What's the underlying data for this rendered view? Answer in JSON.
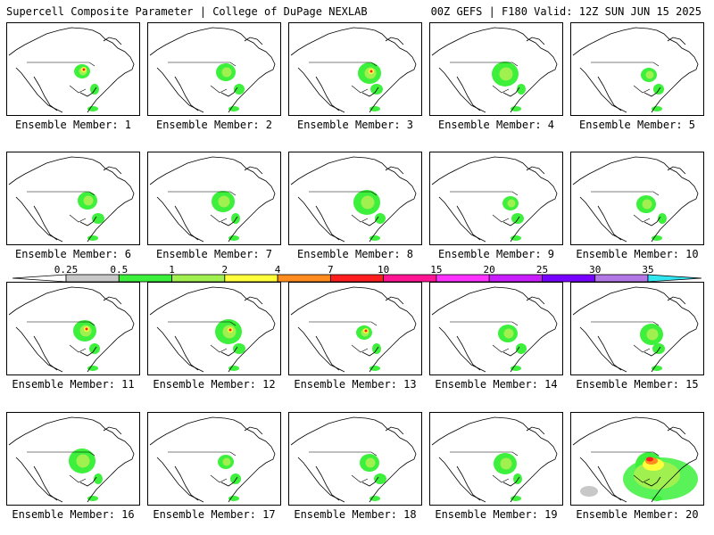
{
  "header": {
    "title_left": "Supercell Composite Parameter | College of DuPage NEXLAB",
    "title_right": "00Z GEFS | F180 Valid: 12Z SUN JUN 15 2025"
  },
  "caption_prefix": "Ensemble Member: ",
  "members": [
    {
      "id": 1,
      "label": "Ensemble Member: 1",
      "intensity": 2
    },
    {
      "id": 2,
      "label": "Ensemble Member: 2",
      "intensity": 1
    },
    {
      "id": 3,
      "label": "Ensemble Member: 3",
      "intensity": 2
    },
    {
      "id": 4,
      "label": "Ensemble Member: 4",
      "intensity": 1
    },
    {
      "id": 5,
      "label": "Ensemble Member: 5",
      "intensity": 1
    },
    {
      "id": 6,
      "label": "Ensemble Member: 6",
      "intensity": 1
    },
    {
      "id": 7,
      "label": "Ensemble Member: 7",
      "intensity": 1
    },
    {
      "id": 8,
      "label": "Ensemble Member: 8",
      "intensity": 1
    },
    {
      "id": 9,
      "label": "Ensemble Member: 9",
      "intensity": 1
    },
    {
      "id": 10,
      "label": "Ensemble Member: 10",
      "intensity": 1
    },
    {
      "id": 11,
      "label": "Ensemble Member: 11",
      "intensity": 2
    },
    {
      "id": 12,
      "label": "Ensemble Member: 12",
      "intensity": 2
    },
    {
      "id": 13,
      "label": "Ensemble Member: 13",
      "intensity": 2
    },
    {
      "id": 14,
      "label": "Ensemble Member: 14",
      "intensity": 1
    },
    {
      "id": 15,
      "label": "Ensemble Member: 15",
      "intensity": 1
    },
    {
      "id": 16,
      "label": "Ensemble Member: 16",
      "intensity": 1
    },
    {
      "id": 17,
      "label": "Ensemble Member: 17",
      "intensity": 1
    },
    {
      "id": 18,
      "label": "Ensemble Member: 18",
      "intensity": 1
    },
    {
      "id": 19,
      "label": "Ensemble Member: 19",
      "intensity": 1
    },
    {
      "id": 20,
      "label": "Ensemble Member: 20",
      "intensity": 3
    }
  ],
  "colorbar": {
    "levels": [
      "0.25",
      "0.5",
      "1",
      "2",
      "4",
      "7",
      "10",
      "15",
      "20",
      "25",
      "30",
      "35"
    ],
    "colors": [
      "#ffffff",
      "#c8c8c8",
      "#3cf03c",
      "#a0f050",
      "#ffff3c",
      "#ff8c1e",
      "#ff1e1e",
      "#ff1493",
      "#ff32ff",
      "#c81eff",
      "#7800ff",
      "#b478e6",
      "#32e6f0"
    ]
  },
  "palette": {
    "low": "#3cf03c",
    "mid": "#a0f050",
    "high": "#ffff3c",
    "orange": "#ff8c1e",
    "red": "#ff1e1e",
    "trace": "#c8c8c8"
  }
}
